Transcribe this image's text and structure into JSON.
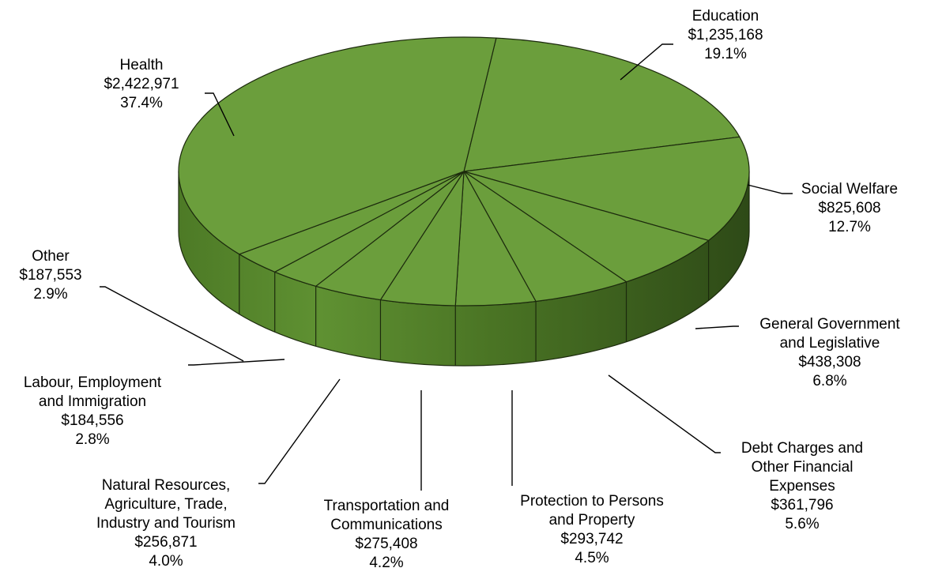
{
  "chart_data": {
    "type": "pie",
    "title": "",
    "style": "3d-pie",
    "colors": {
      "top": "#6b9e3c",
      "side_light": "#5f9132",
      "side_dark": "#2f4a18",
      "edge": "#1c2a0d"
    },
    "slices": [
      {
        "name": "Education",
        "lines": [
          "Education"
        ],
        "value": 1235168,
        "value_label": "$1,235,168",
        "percent_label": "19.1%"
      },
      {
        "name": "Social Welfare",
        "lines": [
          "Social Welfare"
        ],
        "value": 825608,
        "value_label": "$825,608",
        "percent_label": "12.7%"
      },
      {
        "name": "General Government and Legislative",
        "lines": [
          "General Government",
          "and Legislative"
        ],
        "value": 438308,
        "value_label": "$438,308",
        "percent_label": "6.8%"
      },
      {
        "name": "Debt Charges and Other Financial Expenses",
        "lines": [
          "Debt Charges and",
          "Other Financial",
          "Expenses"
        ],
        "value": 361796,
        "value_label": "$361,796",
        "percent_label": "5.6%"
      },
      {
        "name": "Protection to Persons and Property",
        "lines": [
          "Protection to Persons",
          "and Property"
        ],
        "value": 293742,
        "value_label": "$293,742",
        "percent_label": "4.5%"
      },
      {
        "name": "Transportation and Communications",
        "lines": [
          "Transportation and",
          "Communications"
        ],
        "value": 275408,
        "value_label": "$275,408",
        "percent_label": "4.2%"
      },
      {
        "name": "Natural Resources, Agriculture, Trade, Industry and Tourism",
        "lines": [
          "Natural Resources,",
          "Agriculture, Trade,",
          "Industry and Tourism"
        ],
        "value": 256871,
        "value_label": "$256,871",
        "percent_label": "4.0%"
      },
      {
        "name": "Labour, Employment and Immigration",
        "lines": [
          "Labour, Employment",
          "and Immigration"
        ],
        "value": 184556,
        "value_label": "$184,556",
        "percent_label": "2.8%"
      },
      {
        "name": "Other",
        "lines": [
          "Other"
        ],
        "value": 187553,
        "value_label": "$187,553",
        "percent_label": "2.9%"
      },
      {
        "name": "Health",
        "lines": [
          "Health"
        ],
        "value": 2422971,
        "value_label": "$2,422,971",
        "percent_label": "37.4%"
      }
    ]
  }
}
